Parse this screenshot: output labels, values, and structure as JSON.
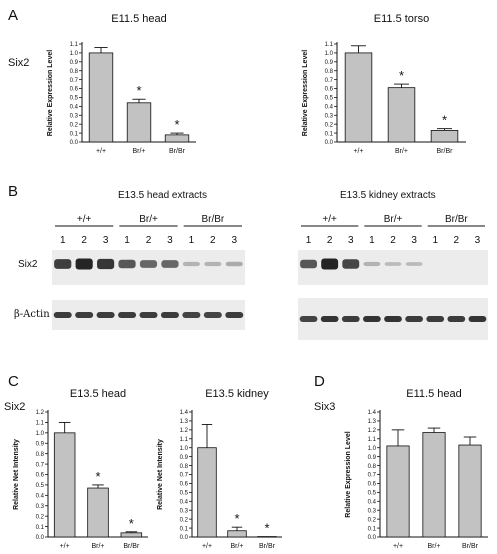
{
  "panels": {
    "A": {
      "letter": "A",
      "gene_label": "Six2",
      "charts": [
        {
          "type": "bar",
          "title": "E11.5 head",
          "ylabel": "Relative Expression  Level",
          "categories": [
            "+/+",
            "Br/+",
            "Br/Br"
          ],
          "values": [
            1.0,
            0.44,
            0.08
          ],
          "errors": [
            0.06,
            0.04,
            0.02
          ],
          "significance": [
            "",
            "*",
            "*"
          ],
          "ylim": [
            0,
            1.1
          ],
          "yticks": [
            0,
            0.1,
            0.2,
            0.3,
            0.4,
            0.5,
            0.6,
            0.7,
            0.8,
            0.9,
            1.0,
            1.1
          ],
          "grid": false
        },
        {
          "type": "bar",
          "title": "E11.5 torso",
          "ylabel": "Relative Expression  Level",
          "categories": [
            "+/+",
            "Br/+",
            "Br/Br"
          ],
          "values": [
            1.0,
            0.61,
            0.13
          ],
          "errors": [
            0.08,
            0.04,
            0.02
          ],
          "significance": [
            "",
            "*",
            "*"
          ],
          "ylim": [
            0,
            1.1
          ],
          "yticks": [
            0,
            0.1,
            0.2,
            0.3,
            0.4,
            0.5,
            0.6,
            0.7,
            0.8,
            0.9,
            1.0,
            1.1
          ],
          "grid": false
        }
      ]
    },
    "B": {
      "letter": "B",
      "blots": [
        {
          "title": "E13.5 head extracts",
          "groups": [
            {
              "label": "+/+",
              "lanes": [
                "1",
                "2",
                "3"
              ]
            },
            {
              "label": "Br/+",
              "lanes": [
                "1",
                "2",
                "3"
              ]
            },
            {
              "label": "Br/Br",
              "lanes": [
                "1",
                "2",
                "3"
              ]
            }
          ],
          "six2_intensity": [
            0.85,
            1.0,
            0.9,
            0.7,
            0.6,
            0.6,
            0.15,
            0.15,
            0.2
          ],
          "actin_intensity": [
            0.85,
            0.85,
            0.85,
            0.85,
            0.85,
            0.85,
            0.8,
            0.8,
            0.85
          ]
        },
        {
          "title": "E13.5 kidney extracts",
          "groups": [
            {
              "label": "+/+",
              "lanes": [
                "1",
                "2",
                "3"
              ]
            },
            {
              "label": "Br/+",
              "lanes": [
                "1",
                "2",
                "3"
              ]
            },
            {
              "label": "Br/Br",
              "lanes": [
                "1",
                "2",
                "3"
              ]
            }
          ],
          "six2_intensity": [
            0.7,
            1.0,
            0.8,
            0.15,
            0.1,
            0.1,
            0.0,
            0.0,
            0.0
          ],
          "actin_intensity": [
            0.8,
            0.9,
            0.85,
            0.9,
            0.9,
            0.85,
            0.85,
            0.85,
            0.9
          ]
        }
      ],
      "row_labels": {
        "six2": "Six2",
        "actin": "β-Actin"
      }
    },
    "C": {
      "letter": "C",
      "gene_label": "Six2",
      "charts": [
        {
          "type": "bar",
          "title": "E13.5 head",
          "ylabel": "Relative Net Intensity",
          "categories": [
            "+/+",
            "Br/+",
            "Br/Br"
          ],
          "values": [
            1.0,
            0.47,
            0.04
          ],
          "errors": [
            0.1,
            0.03,
            0.01
          ],
          "significance": [
            "",
            "*",
            "*"
          ],
          "ylim": [
            0,
            1.2
          ],
          "yticks": [
            0,
            0.1,
            0.2,
            0.3,
            0.4,
            0.5,
            0.6,
            0.7,
            0.8,
            0.9,
            1.0,
            1.1,
            1.2
          ],
          "grid": false
        },
        {
          "type": "bar",
          "title": "E13.5 kidney",
          "ylabel": "Relative Net Intensity",
          "categories": [
            "+/+",
            "Br/+",
            "Br/Br"
          ],
          "values": [
            1.0,
            0.07,
            0.005
          ],
          "errors": [
            0.26,
            0.04,
            0.0
          ],
          "significance": [
            "",
            "*",
            "*"
          ],
          "ylim": [
            0,
            1.4
          ],
          "yticks": [
            0,
            0.1,
            0.2,
            0.3,
            0.4,
            0.5,
            0.6,
            0.7,
            0.8,
            0.9,
            1.0,
            1.1,
            1.2,
            1.3,
            1.4
          ],
          "grid": false
        }
      ]
    },
    "D": {
      "letter": "D",
      "gene_label": "Six3",
      "charts": [
        {
          "type": "bar",
          "title": "E11.5 head",
          "ylabel": "Relative Expression Level",
          "categories": [
            "+/+",
            "Br/+",
            "Br/Br"
          ],
          "values": [
            1.02,
            1.17,
            1.03
          ],
          "errors": [
            0.18,
            0.05,
            0.09
          ],
          "significance": [
            "",
            "",
            ""
          ],
          "ylim": [
            0,
            1.4
          ],
          "yticks": [
            0,
            0.1,
            0.2,
            0.3,
            0.4,
            0.5,
            0.6,
            0.7,
            0.8,
            0.9,
            1.0,
            1.1,
            1.2,
            1.3,
            1.4
          ],
          "grid": false
        }
      ]
    }
  },
  "colors": {
    "bar": "#c2c2c2",
    "ink": "#111111",
    "blot_bg": "#ececec",
    "band": "#1a1a1a"
  }
}
